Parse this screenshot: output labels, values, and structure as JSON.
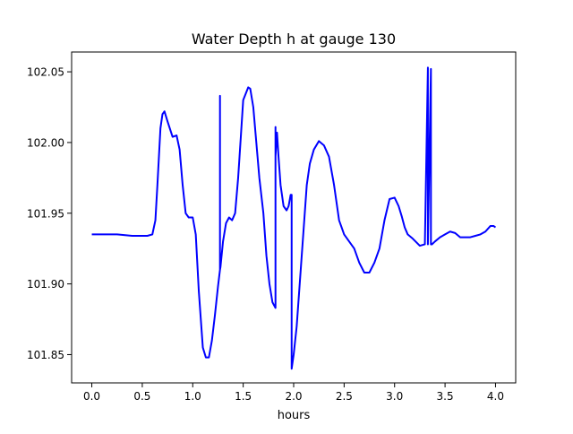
{
  "chart_data": {
    "type": "line",
    "title": "Water Depth h at gauge 130",
    "xlabel": "hours",
    "ylabel": "",
    "xlim": [
      -0.2,
      4.2
    ],
    "ylim": [
      101.83,
      102.064
    ],
    "xticks": [
      0.0,
      0.5,
      1.0,
      1.5,
      2.0,
      2.5,
      3.0,
      3.5,
      4.0
    ],
    "xtick_labels": [
      "0.0",
      "0.5",
      "1.0",
      "1.5",
      "2.0",
      "2.5",
      "3.0",
      "3.5",
      "4.0"
    ],
    "yticks": [
      101.85,
      101.9,
      101.95,
      102.0,
      102.05
    ],
    "ytick_labels": [
      "101.85",
      "101.90",
      "101.95",
      "102.00",
      "102.05"
    ],
    "grid": false,
    "legend": "none",
    "series": [
      {
        "color": "#0000ff",
        "x": [
          0.0,
          0.25,
          0.4,
          0.55,
          0.6,
          0.63,
          0.65,
          0.68,
          0.7,
          0.72,
          0.75,
          0.8,
          0.84,
          0.87,
          0.9,
          0.93,
          0.96,
          1.0,
          1.03,
          1.06,
          1.1,
          1.13,
          1.16,
          1.19,
          1.22,
          1.25,
          1.27,
          1.27,
          1.27,
          1.275,
          1.3,
          1.33,
          1.36,
          1.39,
          1.42,
          1.45,
          1.5,
          1.55,
          1.57,
          1.6,
          1.63,
          1.66,
          1.7,
          1.73,
          1.76,
          1.79,
          1.82,
          1.82,
          1.82,
          1.835,
          1.85,
          1.87,
          1.9,
          1.93,
          1.95,
          1.97,
          1.98,
          1.98,
          1.98,
          2.0,
          2.03,
          2.07,
          2.1,
          2.13,
          2.16,
          2.2,
          2.25,
          2.3,
          2.35,
          2.4,
          2.45,
          2.5,
          2.55,
          2.6,
          2.65,
          2.7,
          2.75,
          2.8,
          2.85,
          2.9,
          2.95,
          3.0,
          3.04,
          3.07,
          3.1,
          3.13,
          3.18,
          3.25,
          3.3,
          3.33,
          3.33,
          3.36,
          3.36,
          3.37,
          3.4,
          3.45,
          3.5,
          3.55,
          3.6,
          3.65,
          3.75,
          3.8,
          3.85,
          3.9,
          3.95,
          3.98,
          4.0
        ],
        "y": [
          101.935,
          101.935,
          101.934,
          101.934,
          101.935,
          101.945,
          101.97,
          102.01,
          102.02,
          102.022,
          102.015,
          102.004,
          102.005,
          101.995,
          101.97,
          101.95,
          101.947,
          101.947,
          101.935,
          101.895,
          101.855,
          101.848,
          101.848,
          101.86,
          101.878,
          101.898,
          101.91,
          102.033,
          101.91,
          101.912,
          101.93,
          101.943,
          101.947,
          101.945,
          101.95,
          101.975,
          102.03,
          102.039,
          102.038,
          102.025,
          102.0,
          101.975,
          101.95,
          101.92,
          101.9,
          101.887,
          101.883,
          102.011,
          101.99,
          102.007,
          101.99,
          101.97,
          101.955,
          101.952,
          101.955,
          101.963,
          101.963,
          101.84,
          101.84,
          101.85,
          101.87,
          101.91,
          101.94,
          101.97,
          101.985,
          101.995,
          102.001,
          101.998,
          101.99,
          101.97,
          101.945,
          101.935,
          101.93,
          101.925,
          101.915,
          101.908,
          101.908,
          101.915,
          101.925,
          101.945,
          101.96,
          101.961,
          101.955,
          101.948,
          101.94,
          101.935,
          101.932,
          101.927,
          101.928,
          102.053,
          101.928,
          102.052,
          101.928,
          101.928,
          101.93,
          101.933,
          101.935,
          101.937,
          101.936,
          101.933,
          101.933,
          101.934,
          101.935,
          101.937,
          101.941,
          101.941,
          101.94
        ]
      }
    ]
  }
}
